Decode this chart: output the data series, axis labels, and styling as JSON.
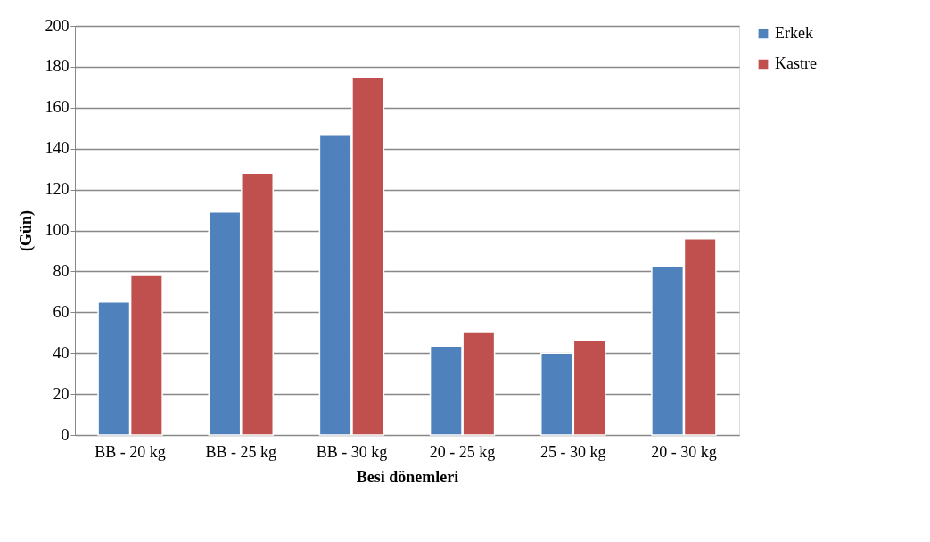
{
  "chart_data": {
    "type": "bar",
    "xlabel": "Besi dönemleri",
    "ylabel": "(Gün)",
    "categories": [
      "BB - 20 kg",
      "BB - 25 kg",
      "BB - 30 kg",
      "20 - 25 kg",
      "25 - 30 kg",
      "20 - 30 kg"
    ],
    "series": [
      {
        "name": "Erkek",
        "color": "#4f81bd",
        "values": [
          65,
          109,
          147,
          43.5,
          40,
          82.5
        ]
      },
      {
        "name": "Kastre",
        "color": "#c0504d",
        "values": [
          78,
          128,
          175,
          50.5,
          46.5,
          96
        ]
      }
    ],
    "ylim": [
      0,
      200
    ],
    "yticks": [
      0,
      20,
      40,
      60,
      80,
      100,
      120,
      140,
      160,
      180,
      200
    ],
    "grid": "y",
    "legend": "right"
  }
}
